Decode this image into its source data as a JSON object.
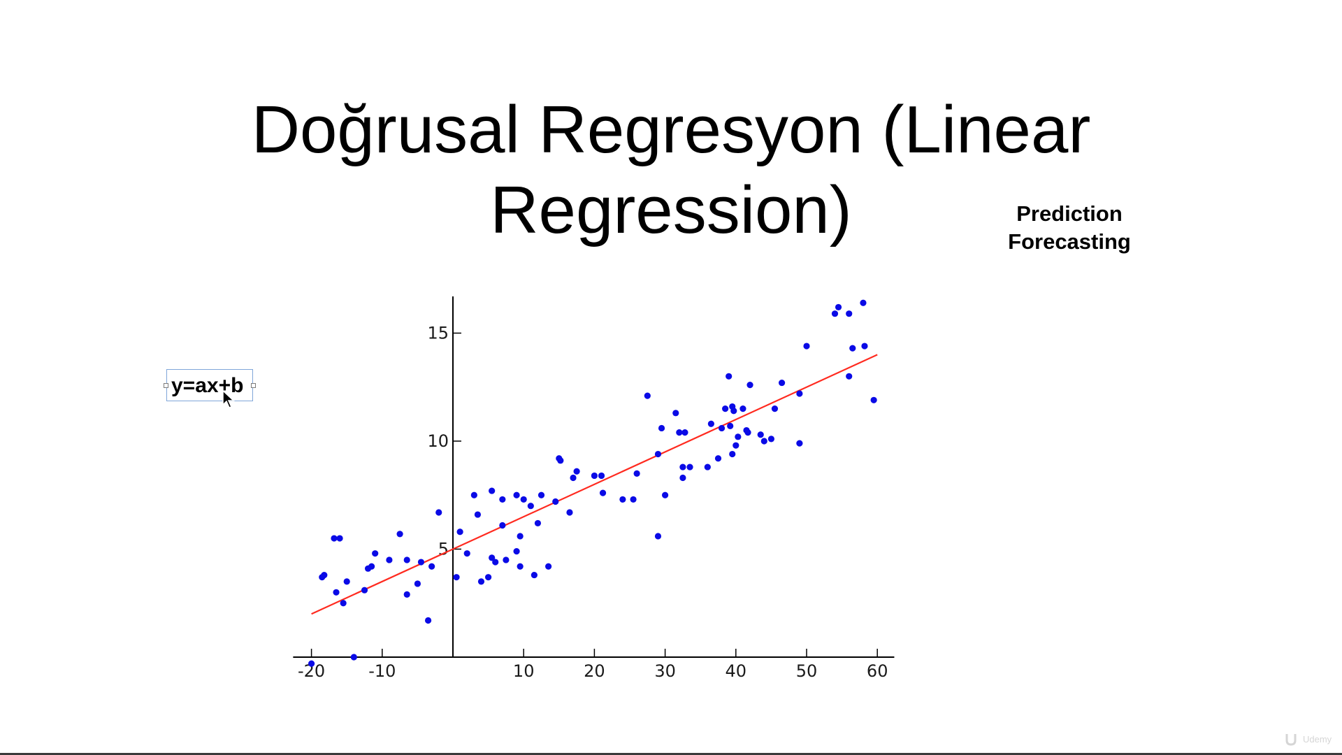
{
  "slide": {
    "title": "Doğrusal Regresyon (Linear Regression)",
    "side_notes": [
      "Prediction",
      "Forecasting"
    ],
    "formula": "y=ax+b",
    "watermark": "Udemy"
  },
  "colors": {
    "points": "#0a0ae6",
    "fit_line": "#ff2a1f",
    "axes": "#000000"
  },
  "icons": {
    "cursor": "arrow-cursor-icon",
    "watermark": "udemy-logo-icon"
  },
  "chart_data": {
    "type": "scatter",
    "xlim": [
      -22,
      62
    ],
    "ylim": [
      0,
      16.7
    ],
    "axes_origin": [
      0,
      0
    ],
    "x_ticks": [
      -20,
      -10,
      10,
      20,
      30,
      40,
      50,
      60
    ],
    "x_tick_labels": [
      "-20",
      "-10",
      "10",
      "20",
      "30",
      "40",
      "50",
      "60"
    ],
    "y_ticks": [
      5,
      10,
      15
    ],
    "y_tick_labels": [
      "5",
      "10",
      "15"
    ],
    "grid": false,
    "fit_line": {
      "x": [
        -20,
        60
      ],
      "y": [
        2.0,
        14.0
      ]
    },
    "points": [
      [
        -18.5,
        3.7
      ],
      [
        -18.2,
        3.8
      ],
      [
        -20,
        -0.3
      ],
      [
        -16.8,
        5.5
      ],
      [
        -16,
        5.5
      ],
      [
        -16.5,
        3.0
      ],
      [
        -15.5,
        2.5
      ],
      [
        -15,
        3.5
      ],
      [
        -14,
        0
      ],
      [
        -12.5,
        3.1
      ],
      [
        -12,
        4.1
      ],
      [
        -11.5,
        4.2
      ],
      [
        -11,
        4.8
      ],
      [
        -9,
        4.5
      ],
      [
        -7.5,
        5.7
      ],
      [
        -6.5,
        4.5
      ],
      [
        -6.5,
        2.9
      ],
      [
        -5,
        3.4
      ],
      [
        -4.5,
        4.4
      ],
      [
        -3.5,
        1.7
      ],
      [
        -3,
        4.2
      ],
      [
        -2,
        6.7
      ],
      [
        0.5,
        3.7
      ],
      [
        1,
        5.8
      ],
      [
        2,
        4.8
      ],
      [
        3,
        7.5
      ],
      [
        3.5,
        6.6
      ],
      [
        4,
        3.5
      ],
      [
        5,
        3.7
      ],
      [
        5.5,
        4.6
      ],
      [
        5.5,
        7.7
      ],
      [
        6,
        4.4
      ],
      [
        7,
        7.3
      ],
      [
        7,
        6.1
      ],
      [
        7.5,
        4.5
      ],
      [
        9,
        4.9
      ],
      [
        9,
        7.5
      ],
      [
        9.5,
        5.6
      ],
      [
        9.5,
        4.2
      ],
      [
        10,
        7.3
      ],
      [
        11,
        7.0
      ],
      [
        11.5,
        3.8
      ],
      [
        12,
        6.2
      ],
      [
        12.5,
        7.5
      ],
      [
        13.5,
        4.2
      ],
      [
        14.5,
        7.2
      ],
      [
        15,
        9.2
      ],
      [
        15.2,
        9.1
      ],
      [
        16.5,
        6.7
      ],
      [
        17,
        8.3
      ],
      [
        17.5,
        8.6
      ],
      [
        20,
        8.4
      ],
      [
        21,
        8.4
      ],
      [
        21.2,
        7.6
      ],
      [
        24,
        7.3
      ],
      [
        25.5,
        7.3
      ],
      [
        26,
        8.5
      ],
      [
        27.5,
        12.1
      ],
      [
        29,
        9.4
      ],
      [
        29,
        5.6
      ],
      [
        29.5,
        10.6
      ],
      [
        30,
        7.5
      ],
      [
        31.5,
        11.3
      ],
      [
        32,
        10.4
      ],
      [
        32.5,
        8.8
      ],
      [
        32.5,
        8.3
      ],
      [
        32.8,
        10.4
      ],
      [
        33.5,
        8.8
      ],
      [
        36,
        8.8
      ],
      [
        36.5,
        10.8
      ],
      [
        37.5,
        9.2
      ],
      [
        38,
        10.6
      ],
      [
        38.5,
        11.5
      ],
      [
        39,
        13.0
      ],
      [
        39.2,
        10.7
      ],
      [
        39.5,
        11.6
      ],
      [
        39.5,
        9.4
      ],
      [
        39.7,
        11.4
      ],
      [
        40,
        9.8
      ],
      [
        40.3,
        10.2
      ],
      [
        41,
        11.5
      ],
      [
        41.5,
        10.5
      ],
      [
        41.7,
        10.4
      ],
      [
        42,
        12.6
      ],
      [
        43.5,
        10.3
      ],
      [
        44,
        10.0
      ],
      [
        45,
        10.1
      ],
      [
        45.5,
        11.5
      ],
      [
        46.5,
        12.7
      ],
      [
        49,
        12.2
      ],
      [
        49,
        9.9
      ],
      [
        50,
        14.4
      ],
      [
        54,
        15.9
      ],
      [
        54.5,
        16.2
      ],
      [
        56,
        15.9
      ],
      [
        56,
        13.0
      ],
      [
        56.5,
        14.3
      ],
      [
        58,
        16.4
      ],
      [
        58.2,
        14.4
      ],
      [
        59.5,
        11.9
      ]
    ]
  }
}
